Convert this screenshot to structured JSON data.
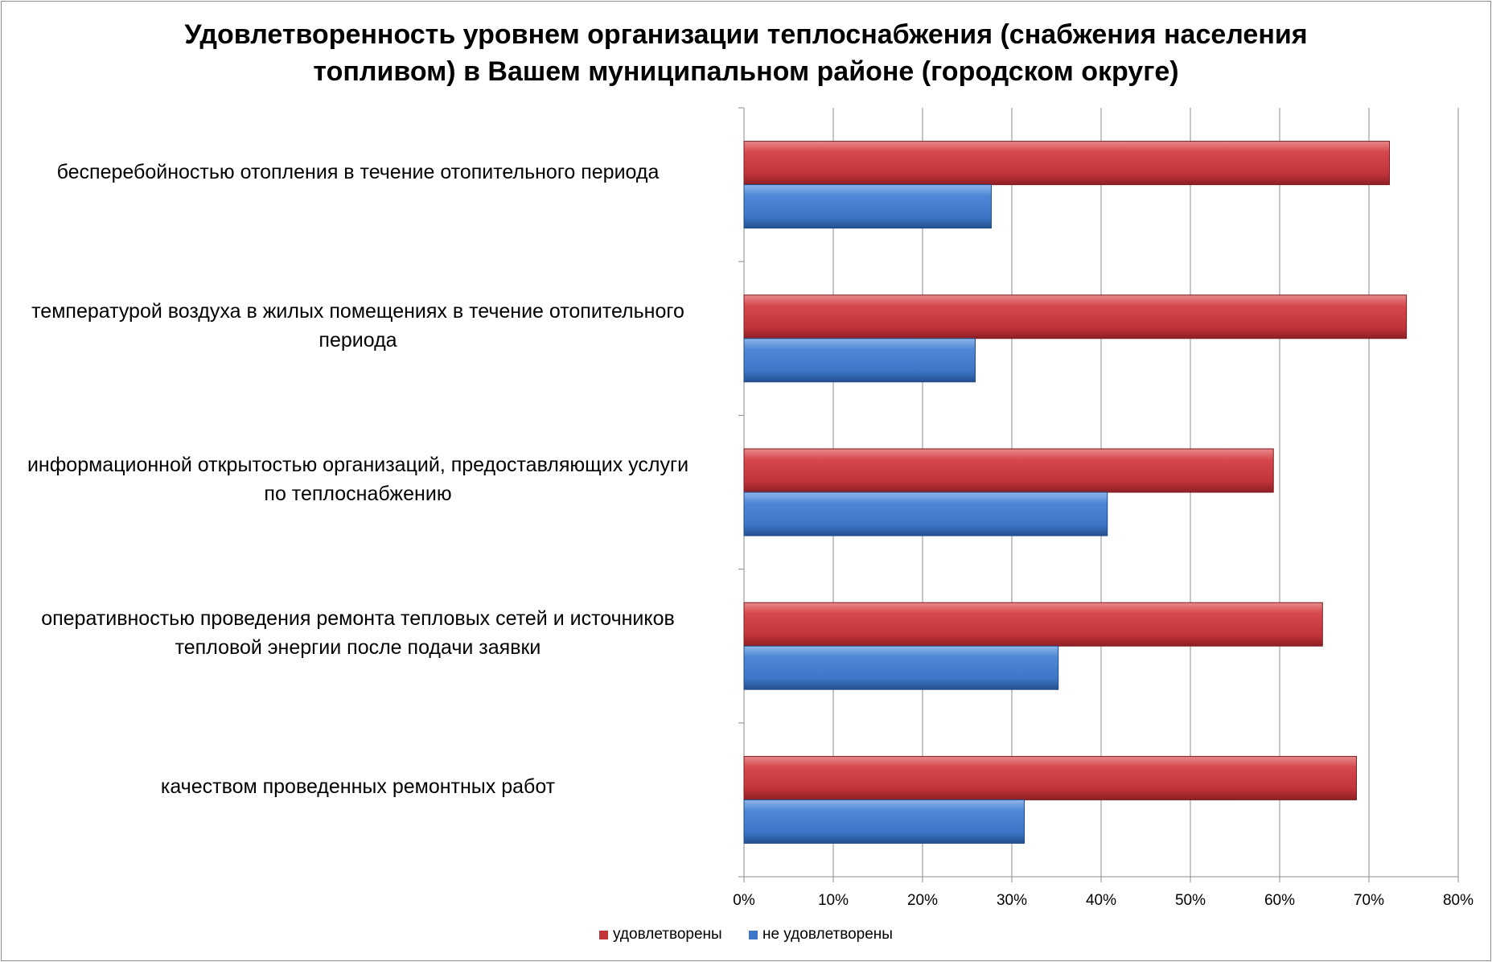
{
  "chart_data": {
    "type": "bar",
    "orientation": "horizontal",
    "title_lines": [
      "Удовлетворенность уровнем организации теплоснабжения (снабжения населения",
      "топливом) в Вашем муниципальном районе (городском округе)"
    ],
    "categories": [
      [
        "бесперебойностью  отопления в течение отопительного периода"
      ],
      [
        "температурой  воздуха в жилых помещениях в течение отопительного",
        "периода"
      ],
      [
        "информационной открытостью организаций, предоставляющих услуги",
        "по теплоснабжению"
      ],
      [
        "оперативностью проведения ремонта тепловых сетей и источников",
        "тепловой энергии после подачи заявки"
      ],
      [
        "качеством  проведенных ремонтных работ"
      ]
    ],
    "series": [
      {
        "name": "удовлетворены",
        "color": "#c0343a",
        "values": [
          72.3,
          74.2,
          59.3,
          64.8,
          68.6
        ]
      },
      {
        "name": "не удовлетворены",
        "color": "#3d76c6",
        "values": [
          27.7,
          25.9,
          40.7,
          35.2,
          31.4
        ]
      }
    ],
    "xlim": [
      0,
      80
    ],
    "xticks": [
      "0%",
      "10%",
      "20%",
      "30%",
      "40%",
      "50%",
      "60%",
      "70%",
      "80%"
    ],
    "grid": true,
    "legend_position": "bottom"
  }
}
